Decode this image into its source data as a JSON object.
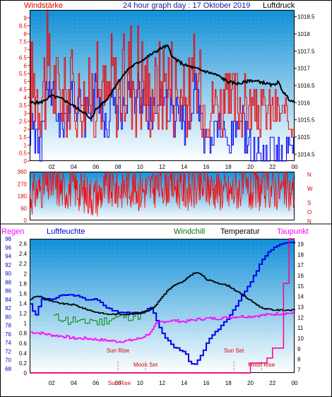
{
  "header": {
    "left": "Windstärke",
    "center": "24 hour graph day : 17 Oktober 2019",
    "right": "Luftdruck"
  },
  "bottom_header": {
    "regen": "Regen",
    "luftfeuchte": "Luftfeuchte",
    "windchill": "Windchill",
    "temperatur": "Temperatur",
    "taupunkt": "Taupunkt"
  },
  "direction_letters": [
    "N",
    "W",
    "S",
    "O",
    "N"
  ],
  "colors": {
    "frame": "#000000",
    "wind_gust": "#ee0000",
    "wind_avg": "#0000ee",
    "pressure": "#000000",
    "direction": "#ff0000",
    "humidity": "#0000ee",
    "windchill": "#008800",
    "temperature": "#000000",
    "dewpoint": "#ff00ff",
    "rain": "#ff0088",
    "bg_top": "#0f8fd6",
    "bg_bottom": "#ffffff"
  },
  "chart_data": [
    {
      "type": "line",
      "title": "24 hour graph day : 17 Oktober 2019",
      "x_ticks": [
        "02",
        "04",
        "06",
        "08",
        "10",
        "12",
        "14",
        "16",
        "18",
        "20",
        "22",
        "00"
      ],
      "xlim": [
        0,
        24
      ],
      "y_left": {
        "label": "Windstärke",
        "ticks": [
          "0",
          "0.5",
          "1",
          "1.5",
          "2",
          "2.5",
          "3",
          "3.5",
          "4",
          "4.5",
          "5",
          "5.5",
          "6",
          "6.5",
          "7",
          "7.5",
          "8",
          "8.5",
          "9"
        ],
        "lim": [
          0,
          9.5
        ]
      },
      "y_right": {
        "label": "Luftdruck",
        "ticks": [
          "1014.5",
          "1015",
          "1015.5",
          "1016",
          "1016.5",
          "1017",
          "1017.5",
          "1018",
          "1018.5"
        ],
        "lim": [
          1014.3,
          1018.7
        ]
      },
      "series": [
        {
          "axis": "right",
          "x": [
            0,
            1,
            2,
            3,
            4,
            5,
            5.5,
            6,
            7,
            8,
            9,
            10,
            11,
            12,
            12.5,
            13,
            14,
            15,
            16,
            17,
            18,
            19,
            20,
            21,
            22,
            22.5,
            23,
            23.5,
            24
          ],
          "values": [
            1016.0,
            1016.0,
            1016.2,
            1016.1,
            1015.9,
            1015.7,
            1015.5,
            1015.8,
            1016.1,
            1016.6,
            1017.0,
            1017.2,
            1017.4,
            1017.6,
            1017.65,
            1017.3,
            1017.1,
            1017.0,
            1016.9,
            1016.8,
            1016.6,
            1016.55,
            1016.65,
            1016.6,
            1016.5,
            1016.6,
            1016.3,
            1016.1,
            1016.0
          ]
        },
        {
          "axis": "left",
          "x": [
            0,
            1,
            1.5,
            2,
            3,
            4,
            5,
            6,
            7,
            7.5,
            8,
            9,
            10,
            11,
            12,
            13,
            14,
            15,
            16,
            17,
            18,
            19,
            20,
            21,
            22,
            23,
            24
          ],
          "values": [
            8.5,
            7.0,
            9.5,
            8.0,
            6.5,
            7.5,
            6.0,
            8.0,
            6.5,
            9.0,
            6.5,
            9.5,
            9.5,
            6.5,
            8.5,
            8.5,
            6.0,
            8.5,
            5.5,
            6.0,
            5.5,
            6.5,
            5.0,
            4.5,
            5.0,
            4.0,
            3.5
          ]
        },
        {
          "axis": "left",
          "x": [
            0,
            1,
            1.5,
            2,
            3,
            4,
            5,
            6,
            7,
            7.5,
            8,
            9,
            10,
            11,
            12,
            13,
            14,
            15,
            16,
            17,
            18,
            19,
            20,
            21,
            22,
            23,
            24
          ],
          "values": [
            3.5,
            2.0,
            5.5,
            5.5,
            3.5,
            5.5,
            4.0,
            5.5,
            3.5,
            5.5,
            4.0,
            5.5,
            5.5,
            4.0,
            5.5,
            4.0,
            3.5,
            5.5,
            2.0,
            3.5,
            2.0,
            4.0,
            2.0,
            1.5,
            2.0,
            1.5,
            1.5
          ]
        }
      ]
    },
    {
      "type": "line",
      "y_left": {
        "ticks": [
          "0",
          "90",
          "180",
          "270",
          "360"
        ],
        "lim": [
          0,
          360
        ]
      },
      "series": [
        {
          "x": [
            0,
            1,
            2,
            3,
            4,
            5,
            6,
            7,
            8,
            9,
            10,
            11,
            12,
            13,
            14,
            15,
            16,
            17,
            18,
            19,
            20,
            21,
            22,
            23,
            24
          ],
          "values": [
            180,
            240,
            270,
            230,
            250,
            200,
            180,
            240,
            230,
            260,
            220,
            240,
            270,
            260,
            230,
            220,
            250,
            240,
            200,
            240,
            210,
            230,
            240,
            220,
            200
          ]
        }
      ]
    },
    {
      "type": "line",
      "x_ticks": [
        "02",
        "04",
        "06",
        "08",
        "10",
        "12",
        "14",
        "16",
        "18",
        "20",
        "22",
        "00"
      ],
      "xlim": [
        0,
        24
      ],
      "annotations": [
        {
          "text": "Sun Rise",
          "x": 8.0
        },
        {
          "text": "Moon Set",
          "x": 10.5
        },
        {
          "text": "Sun Set",
          "x": 18.5
        },
        {
          "text": "Moon Rise",
          "x": 21.0
        },
        {
          "text": "Sun Rise",
          "x": 8.0
        }
      ],
      "y_left": {
        "label": "Luftfeuchte",
        "ticks": [
          "68",
          "70",
          "72",
          "74",
          "76",
          "78",
          "80",
          "82",
          "84",
          "86",
          "88",
          "90",
          "92",
          "94",
          "96",
          "98"
        ],
        "lim": [
          67,
          98
        ]
      },
      "y_left_rain": {
        "label": "Regen",
        "ticks": [
          "0",
          "0.2",
          "0.4",
          "0.6",
          "0.8",
          "1",
          "1.2",
          "1.4",
          "1.6",
          "1.8",
          "2",
          "2.2",
          "2.4",
          "2.6"
        ],
        "lim": [
          0,
          2.7
        ]
      },
      "y_right": {
        "label": "Temperatur",
        "ticks": [
          "7",
          "8",
          "9",
          "10",
          "11",
          "12",
          "13",
          "14",
          "15",
          "16",
          "17",
          "18",
          "19"
        ],
        "lim": [
          6.7,
          19.5
        ]
      },
      "series": [
        {
          "name": "Temperatur",
          "axis": "right",
          "x": [
            0,
            0.5,
            1,
            1.5,
            2,
            3,
            4,
            5,
            6,
            7,
            8,
            9,
            10,
            11,
            11.5,
            12,
            12.5,
            13,
            14,
            14.5,
            15,
            15.5,
            16,
            17,
            18,
            19,
            20,
            21,
            22,
            23,
            24
          ],
          "values": [
            13.7,
            14.0,
            14.0,
            13.7,
            13.5,
            13.3,
            13.2,
            12.8,
            12.5,
            12.3,
            12.3,
            12.3,
            12.4,
            12.8,
            13.3,
            14.0,
            14.6,
            15.0,
            15.5,
            16.0,
            16.3,
            16.1,
            15.6,
            15.3,
            15.0,
            14.3,
            13.6,
            12.9,
            12.7,
            12.7,
            12.7
          ]
        },
        {
          "name": "Windchill",
          "axis": "right",
          "x": [
            2,
            2.5,
            3,
            3.5,
            4,
            4.5,
            5,
            5.5,
            6,
            6.5,
            7,
            7.5,
            8,
            8.5,
            9,
            9.5,
            10,
            10.5
          ],
          "values": [
            12.2,
            11.9,
            12.0,
            11.6,
            11.8,
            11.5,
            11.4,
            11.9,
            11.5,
            11.6,
            11.8,
            11.9,
            12.0,
            12.1,
            12.1,
            12.2,
            12.2,
            12.3
          ]
        },
        {
          "name": "Luftfeuchte",
          "axis": "left",
          "x": [
            0,
            0.5,
            1,
            2,
            3,
            4,
            5,
            6,
            7,
            8,
            9,
            10,
            11,
            11.5,
            12,
            13,
            14,
            14.5,
            15,
            15.5,
            16,
            17,
            18,
            19,
            20,
            21,
            22,
            23,
            24
          ],
          "values": [
            83,
            80,
            84,
            84,
            85,
            85,
            84,
            84,
            82,
            81,
            81,
            81,
            82,
            79,
            76,
            73,
            72,
            69,
            69,
            71,
            74,
            77,
            80,
            84,
            88,
            93,
            96,
            97,
            97
          ]
        },
        {
          "name": "Taupunkt",
          "axis": "right",
          "x": [
            0,
            1,
            2,
            3,
            4,
            5,
            6,
            7,
            8,
            9,
            10,
            11,
            11.5,
            12,
            13,
            14,
            15,
            16,
            17,
            18,
            19,
            20,
            21,
            22,
            23,
            24
          ],
          "values": [
            10.6,
            10.5,
            10.3,
            10.2,
            10.0,
            10.0,
            9.9,
            9.8,
            9.7,
            9.8,
            10.0,
            10.6,
            11.5,
            11.6,
            11.7,
            11.6,
            11.8,
            11.9,
            11.9,
            12.0,
            12.1,
            12.1,
            12.2,
            12.3,
            12.4,
            12.4
          ]
        },
        {
          "name": "Regen",
          "axis": "rain",
          "x": [
            0,
            19.5,
            20,
            21.5,
            22,
            23,
            23.5,
            24
          ],
          "values": [
            0,
            0,
            0.2,
            0.3,
            0.5,
            1.8,
            2.7,
            2.7
          ]
        }
      ]
    }
  ]
}
